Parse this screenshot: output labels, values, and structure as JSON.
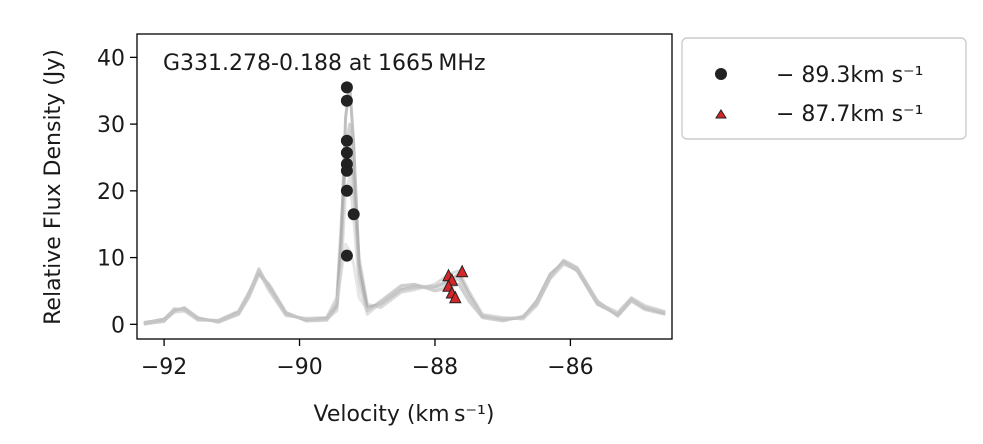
{
  "chart_data": {
    "type": "scatter",
    "annotation": "G331.278-0.188 at 1665 MHz",
    "xlabel": "Velocity (km s⁻¹)",
    "ylabel": "Relative Flux Density (Jy)",
    "xlim": [
      -92.4,
      -84.5
    ],
    "ylim": [
      -2.2,
      43.5
    ],
    "xticks": [
      -92,
      -90,
      -88,
      -86
    ],
    "xtick_labels": [
      "−92",
      "−90",
      "−88",
      "−86"
    ],
    "yticks": [
      0,
      10,
      20,
      30,
      40
    ],
    "ytick_labels": [
      "0",
      "10",
      "20",
      "30",
      "40"
    ],
    "grid": false,
    "legend": {
      "placement": "outside-top-right",
      "entries": [
        {
          "label": "− 89.3km s⁻¹",
          "marker": "circle",
          "color": "#222222"
        },
        {
          "label": "− 87.7km s⁻¹",
          "marker": "triangle",
          "color": "#d62728"
        }
      ]
    },
    "series": [
      {
        "label_ref": 0,
        "marker": "circle",
        "color": "#222222",
        "points": [
          {
            "x": -89.3,
            "y": 35.5
          },
          {
            "x": -89.3,
            "y": 33.5
          },
          {
            "x": -89.3,
            "y": 27.5
          },
          {
            "x": -89.3,
            "y": 25.7
          },
          {
            "x": -89.3,
            "y": 24.0
          },
          {
            "x": -89.3,
            "y": 23.0
          },
          {
            "x": -89.3,
            "y": 20.0
          },
          {
            "x": -89.2,
            "y": 16.5
          },
          {
            "x": -89.3,
            "y": 10.3
          }
        ]
      },
      {
        "label_ref": 1,
        "marker": "triangle",
        "color": "#d62728",
        "points": [
          {
            "x": -87.8,
            "y": 7.2
          },
          {
            "x": -87.6,
            "y": 7.8
          },
          {
            "x": -87.75,
            "y": 6.5
          },
          {
            "x": -87.8,
            "y": 5.6
          },
          {
            "x": -87.75,
            "y": 4.6
          },
          {
            "x": -87.7,
            "y": 3.9
          }
        ]
      }
    ],
    "spectra": [
      {
        "color": "#8c8c8c",
        "opacity": 0.55,
        "x": [
          -92.3,
          -92.0,
          -91.85,
          -91.7,
          -91.5,
          -91.2,
          -90.9,
          -90.75,
          -90.6,
          -90.45,
          -90.2,
          -89.9,
          -89.6,
          -89.45,
          -89.38,
          -89.32,
          -89.26,
          -89.2,
          -89.12,
          -89.0,
          -88.8,
          -88.5,
          -88.3,
          -88.0,
          -87.8,
          -87.65,
          -87.5,
          -87.3,
          -87.0,
          -86.7,
          -86.5,
          -86.3,
          -86.1,
          -85.9,
          -85.6,
          -85.3,
          -85.1,
          -84.9,
          -84.6
        ],
        "y": [
          0.2,
          0.8,
          2.2,
          2.3,
          0.8,
          0.5,
          1.8,
          4.5,
          8.2,
          5.5,
          1.5,
          0.7,
          0.9,
          3.0,
          14.0,
          31.0,
          36.0,
          27.0,
          9.0,
          2.5,
          3.0,
          5.2,
          5.6,
          5.6,
          6.5,
          7.5,
          4.5,
          1.2,
          0.8,
          1.0,
          3.5,
          7.5,
          9.3,
          8.0,
          3.0,
          1.5,
          3.8,
          2.5,
          1.7
        ]
      },
      {
        "color": "#9a9a9a",
        "opacity": 0.45,
        "x": [
          -92.3,
          -92.0,
          -91.85,
          -91.7,
          -91.5,
          -91.2,
          -90.9,
          -90.75,
          -90.6,
          -90.45,
          -90.2,
          -89.9,
          -89.6,
          -89.45,
          -89.38,
          -89.32,
          -89.26,
          -89.2,
          -89.12,
          -89.0,
          -88.8,
          -88.5,
          -88.3,
          -88.0,
          -87.8,
          -87.65,
          -87.5,
          -87.3,
          -87.0,
          -86.7,
          -86.5,
          -86.3,
          -86.1,
          -85.9,
          -85.6,
          -85.3,
          -85.1,
          -84.9,
          -84.6
        ],
        "y": [
          0.0,
          0.5,
          2.0,
          2.5,
          1.0,
          0.3,
          1.5,
          4.0,
          7.5,
          6.0,
          1.8,
          0.5,
          0.6,
          2.5,
          12.0,
          26.0,
          30.0,
          22.0,
          7.5,
          2.0,
          3.5,
          5.8,
          6.0,
          5.0,
          5.5,
          6.0,
          3.5,
          1.0,
          0.5,
          1.2,
          3.0,
          7.0,
          9.6,
          8.5,
          3.5,
          1.2,
          3.5,
          2.2,
          1.5
        ]
      },
      {
        "color": "#b0b0b0",
        "opacity": 0.45,
        "x": [
          -92.3,
          -92.0,
          -91.85,
          -91.7,
          -91.5,
          -91.2,
          -90.9,
          -90.75,
          -90.6,
          -90.45,
          -90.2,
          -89.9,
          -89.6,
          -89.45,
          -89.38,
          -89.32,
          -89.26,
          -89.2,
          -89.12,
          -89.0,
          -88.8,
          -88.5,
          -88.3,
          -88.0,
          -87.8,
          -87.65,
          -87.5,
          -87.3,
          -87.0,
          -86.7,
          -86.5,
          -86.3,
          -86.1,
          -85.9,
          -85.6,
          -85.3,
          -85.1,
          -84.9,
          -84.6
        ],
        "y": [
          0.3,
          0.6,
          1.8,
          2.0,
          0.6,
          0.6,
          2.0,
          4.8,
          7.8,
          5.0,
          1.3,
          0.9,
          1.0,
          4.0,
          16.0,
          24.0,
          26.0,
          20.0,
          10.0,
          3.0,
          2.5,
          4.8,
          5.2,
          6.0,
          7.5,
          8.0,
          5.0,
          1.5,
          1.0,
          0.8,
          2.8,
          6.8,
          9.0,
          8.2,
          3.2,
          1.8,
          4.0,
          2.8,
          1.9
        ]
      },
      {
        "color": "#c4c4c4",
        "opacity": 0.5,
        "x": [
          -92.3,
          -92.0,
          -91.85,
          -91.7,
          -91.5,
          -91.2,
          -90.9,
          -90.75,
          -90.6,
          -90.45,
          -90.2,
          -89.9,
          -89.6,
          -89.45,
          -89.38,
          -89.32,
          -89.26,
          -89.2,
          -89.12,
          -89.0,
          -88.8,
          -88.5,
          -88.3,
          -88.0,
          -87.8,
          -87.65,
          -87.5,
          -87.3,
          -87.0,
          -86.7,
          -86.5,
          -86.3,
          -86.1,
          -85.9,
          -85.6,
          -85.3,
          -85.1,
          -84.9,
          -84.6
        ],
        "y": [
          0.1,
          0.4,
          2.4,
          2.1,
          0.9,
          0.4,
          1.6,
          4.2,
          8.0,
          5.8,
          1.6,
          0.6,
          0.8,
          2.0,
          9.0,
          20.0,
          22.0,
          16.0,
          6.0,
          1.5,
          3.2,
          5.5,
          5.9,
          5.4,
          6.0,
          6.8,
          4.0,
          1.3,
          0.7,
          1.1,
          3.2,
          7.2,
          9.4,
          8.4,
          3.4,
          1.4,
          3.6,
          2.4,
          1.6
        ]
      },
      {
        "color": "#d0d0d0",
        "opacity": 0.5,
        "x": [
          -92.3,
          -92.0,
          -91.85,
          -91.7,
          -91.5,
          -91.2,
          -90.9,
          -90.75,
          -90.6,
          -90.45,
          -90.2,
          -89.9,
          -89.6,
          -89.45,
          -89.38,
          -89.32,
          -89.26,
          -89.2,
          -89.12,
          -89.0,
          -88.8,
          -88.5,
          -88.3,
          -88.0,
          -87.8,
          -87.65,
          -87.5,
          -87.3,
          -87.0,
          -86.7,
          -86.5,
          -86.3,
          -86.1,
          -85.9,
          -85.6,
          -85.3,
          -85.1,
          -84.9,
          -84.6
        ],
        "y": [
          0.2,
          0.7,
          2.1,
          2.4,
          0.7,
          0.5,
          1.7,
          4.4,
          8.4,
          5.4,
          1.4,
          0.8,
          0.7,
          3.5,
          8.0,
          12.0,
          11.0,
          9.0,
          4.0,
          2.2,
          3.0,
          5.0,
          5.5,
          5.7,
          6.2,
          7.0,
          4.2,
          1.1,
          0.9,
          1.0,
          3.1,
          7.1,
          9.2,
          8.1,
          3.1,
          1.6,
          3.7,
          2.6,
          1.8
        ]
      }
    ]
  }
}
